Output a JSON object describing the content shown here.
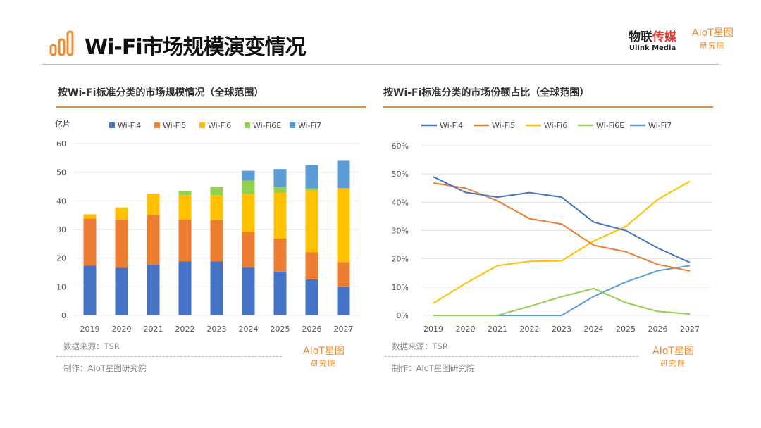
{
  "header": {
    "title": "Wi-Fi市场规模演变情况",
    "brand_cn_a": "物联",
    "brand_cn_b": "传媒",
    "brand_en": "Ulink Media",
    "aiot_logo": "AIoT星图",
    "aiot_sub": "研究院"
  },
  "colors": {
    "Wi-Fi4": "#4472c4",
    "Wi-Fi5": "#ed7d31",
    "Wi-Fi6": "#ffc000",
    "Wi-Fi6E": "#92d050",
    "Wi-Fi7": "#5b9bd5",
    "accent": "#f08a2c"
  },
  "left": {
    "subtitle": "按Wi-Fi标准分类的市场规模情况（全球范围）",
    "source": "数据来源：TSR",
    "maker": "制作：AIoT星图研究院"
  },
  "right": {
    "subtitle": "按Wi-Fi标准分类的市场份额占比（全球范围）",
    "source": "数据来源：TSR",
    "maker": "制作：AIoT星图研究院"
  },
  "chart_data": [
    {
      "type": "bar",
      "stacked": true,
      "title": "按Wi-Fi标准分类的市场规模情况（全球范围）",
      "ylabel": "亿片",
      "ylim": [
        0,
        60
      ],
      "yticks": [
        0,
        10,
        20,
        30,
        40,
        50,
        60
      ],
      "categories": [
        "2019",
        "2020",
        "2021",
        "2022",
        "2023",
        "2024",
        "2025",
        "2026",
        "2027"
      ],
      "series": [
        {
          "name": "Wi-Fi4",
          "values": [
            17.4,
            16.6,
            17.8,
            18.9,
            18.9,
            16.7,
            15.3,
            12.6,
            10.1
          ]
        },
        {
          "name": "Wi-Fi5",
          "values": [
            16.4,
            16.9,
            17.3,
            14.7,
            14.4,
            12.5,
            11.5,
            9.4,
            8.5
          ]
        },
        {
          "name": "Wi-Fi6",
          "values": [
            1.5,
            4.2,
            7.4,
            8.4,
            8.7,
            13.2,
            16.0,
            21.6,
            25.7
          ]
        },
        {
          "name": "Wi-Fi6E",
          "values": [
            0,
            0,
            0,
            1.4,
            3.0,
            4.7,
            2.2,
            0.7,
            0.2
          ]
        },
        {
          "name": "Wi-Fi7",
          "values": [
            0,
            0,
            0,
            0,
            0,
            3.4,
            6.1,
            8.2,
            9.5
          ]
        }
      ],
      "legend": "top",
      "grid": true
    },
    {
      "type": "line",
      "title": "按Wi-Fi标准分类的市场份额占比（全球范围）",
      "ylim": [
        0,
        60
      ],
      "yticks": [
        "0%",
        "10%",
        "20%",
        "30%",
        "40%",
        "50%",
        "60%"
      ],
      "categories": [
        "2019",
        "2020",
        "2021",
        "2022",
        "2023",
        "2024",
        "2025",
        "2026",
        "2027"
      ],
      "series": [
        {
          "name": "Wi-Fi4",
          "values": [
            49,
            43.5,
            41.8,
            43.4,
            41.8,
            33,
            30,
            23.8,
            18.7
          ]
        },
        {
          "name": "Wi-Fi5",
          "values": [
            46.8,
            45,
            40.5,
            34.2,
            32.3,
            24.8,
            22.5,
            18,
            15.7
          ]
        },
        {
          "name": "Wi-Fi6",
          "values": [
            4.3,
            11.3,
            17.6,
            19.1,
            19.3,
            26.3,
            31.4,
            41,
            47.4
          ]
        },
        {
          "name": "Wi-Fi6E",
          "values": [
            0,
            0,
            0,
            3.2,
            6.6,
            9.5,
            4.5,
            1.4,
            0.5
          ]
        },
        {
          "name": "Wi-Fi7",
          "values": [
            0,
            0,
            0,
            0,
            0,
            6.7,
            11.8,
            15.8,
            17.6
          ]
        }
      ],
      "legend": "top",
      "grid": true
    }
  ]
}
